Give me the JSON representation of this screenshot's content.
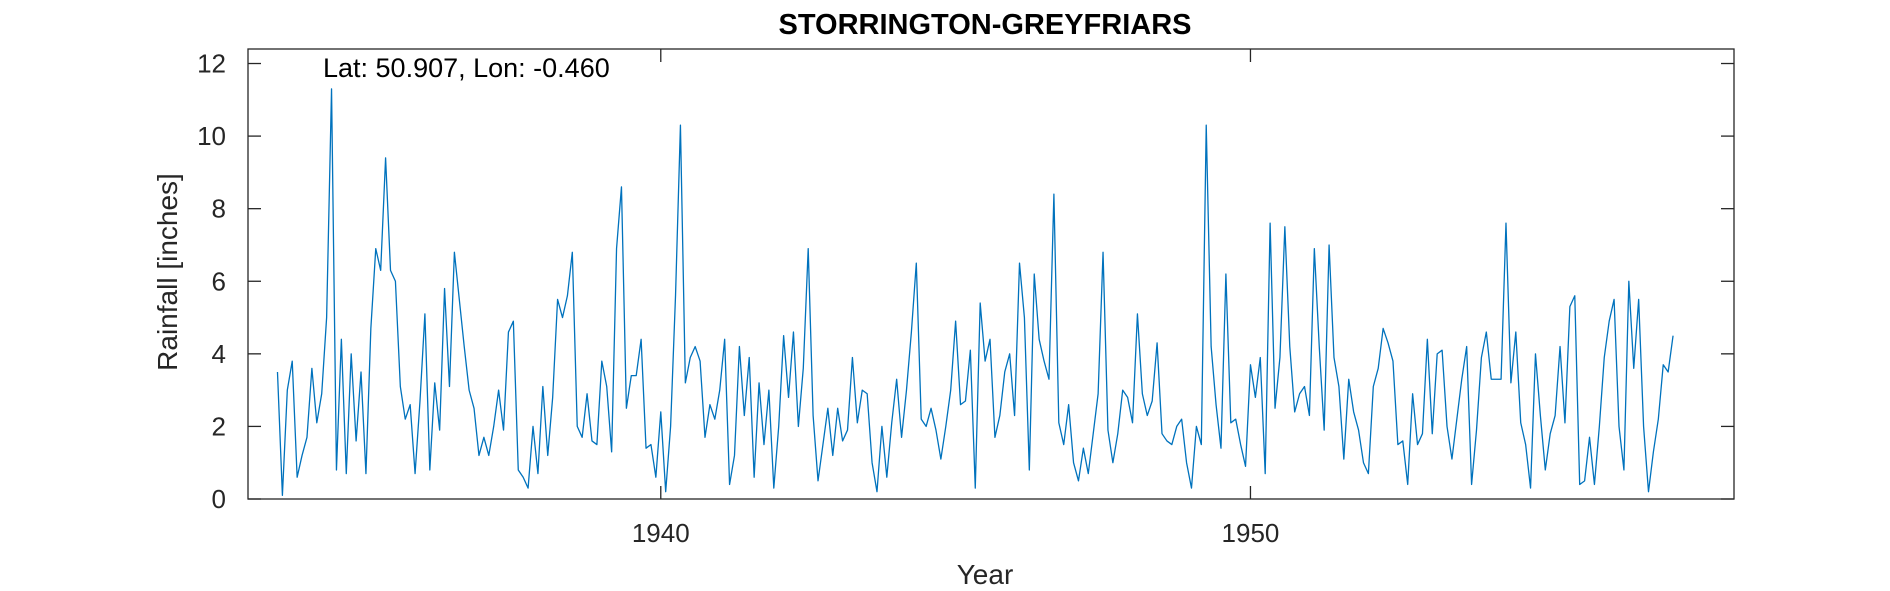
{
  "chart_data": {
    "type": "line",
    "title": "STORRINGTON-GREYFRIARS",
    "xlabel": "Year",
    "ylabel": "Rainfall [inches]",
    "annotation": "Lat: 50.907, Lon: -0.460",
    "xlim": [
      1933.0,
      1958.2
    ],
    "ylim": [
      0,
      12.4
    ],
    "xticks": [
      1940,
      1950
    ],
    "yticks": [
      0,
      2,
      4,
      6,
      8,
      10,
      12
    ],
    "grid": false,
    "legend": "none",
    "colors": {
      "line": "#0072BD",
      "axes": "#262626",
      "background": "#ffffff"
    },
    "x_start": 1933.5,
    "x_step_years": 0.083333,
    "series": [
      {
        "values": [
          3.5,
          0.1,
          3.0,
          3.8,
          0.6,
          1.2,
          1.7,
          3.6,
          2.1,
          2.9,
          5.0,
          11.3,
          0.8,
          4.4,
          0.7,
          4.0,
          1.6,
          3.5,
          0.7,
          4.7,
          6.9,
          6.3,
          9.4,
          6.3,
          6.0,
          3.1,
          2.2,
          2.6,
          0.7,
          2.7,
          5.1,
          0.8,
          3.2,
          1.9,
          5.8,
          3.1,
          6.8,
          5.5,
          4.2,
          3.0,
          2.5,
          1.2,
          1.7,
          1.2,
          2.0,
          3.0,
          1.9,
          4.6,
          4.9,
          0.8,
          0.6,
          0.3,
          2.0,
          0.7,
          3.1,
          1.2,
          2.8,
          5.5,
          5.0,
          5.6,
          6.8,
          2.0,
          1.7,
          2.9,
          1.6,
          1.5,
          3.8,
          3.1,
          1.3,
          6.9,
          8.6,
          2.5,
          3.4,
          3.4,
          4.4,
          1.4,
          1.5,
          0.6,
          2.4,
          0.2,
          2.0,
          5.6,
          10.3,
          3.2,
          3.9,
          4.2,
          3.8,
          1.7,
          2.6,
          2.2,
          3.0,
          4.4,
          0.4,
          1.2,
          4.2,
          2.3,
          3.9,
          0.6,
          3.2,
          1.5,
          3.0,
          0.3,
          2.0,
          4.5,
          2.8,
          4.6,
          2.0,
          3.6,
          6.9,
          2.3,
          0.5,
          1.5,
          2.5,
          1.2,
          2.5,
          1.6,
          1.9,
          3.9,
          2.1,
          3.0,
          2.9,
          1.0,
          0.2,
          2.0,
          0.6,
          2.1,
          3.3,
          1.7,
          3.0,
          4.6,
          6.5,
          2.2,
          2.0,
          2.5,
          1.9,
          1.1,
          2.0,
          3.0,
          4.9,
          2.6,
          2.7,
          4.1,
          0.3,
          5.4,
          3.8,
          4.4,
          1.7,
          2.3,
          3.5,
          4.0,
          2.3,
          6.5,
          5.0,
          0.8,
          6.2,
          4.4,
          3.8,
          3.3,
          8.4,
          2.1,
          1.5,
          2.6,
          1.0,
          0.5,
          1.4,
          0.7,
          1.8,
          2.9,
          6.8,
          1.9,
          1.0,
          1.8,
          3.0,
          2.8,
          2.1,
          5.1,
          2.9,
          2.3,
          2.7,
          4.3,
          1.8,
          1.6,
          1.5,
          2.0,
          2.2,
          1.0,
          0.3,
          2.0,
          1.5,
          10.3,
          4.2,
          2.6,
          1.4,
          6.2,
          2.1,
          2.2,
          1.5,
          0.9,
          3.7,
          2.8,
          3.9,
          0.7,
          7.6,
          2.5,
          3.9,
          7.5,
          4.2,
          2.4,
          2.9,
          3.1,
          2.3,
          6.9,
          4.2,
          1.9,
          7.0,
          3.9,
          3.1,
          1.1,
          3.3,
          2.4,
          1.9,
          1.0,
          0.7,
          3.1,
          3.6,
          4.7,
          4.3,
          3.8,
          1.5,
          1.6,
          0.4,
          2.9,
          1.5,
          1.8,
          4.4,
          1.8,
          4.0,
          4.1,
          2.0,
          1.1,
          2.2,
          3.3,
          4.2,
          0.4,
          1.9,
          3.9,
          4.6,
          3.3,
          3.3,
          3.3,
          7.6,
          3.2,
          4.6,
          2.1,
          1.5,
          0.3,
          4.0,
          2.3,
          0.8,
          1.8,
          2.3,
          4.2,
          2.1,
          5.3,
          5.6,
          0.4,
          0.5,
          1.7,
          0.4,
          2.0,
          3.9,
          4.9,
          5.5,
          2.0,
          0.8,
          6.0,
          3.6,
          5.5,
          2.0,
          0.2,
          1.3,
          2.2,
          3.7,
          3.5,
          4.5
        ]
      }
    ]
  }
}
